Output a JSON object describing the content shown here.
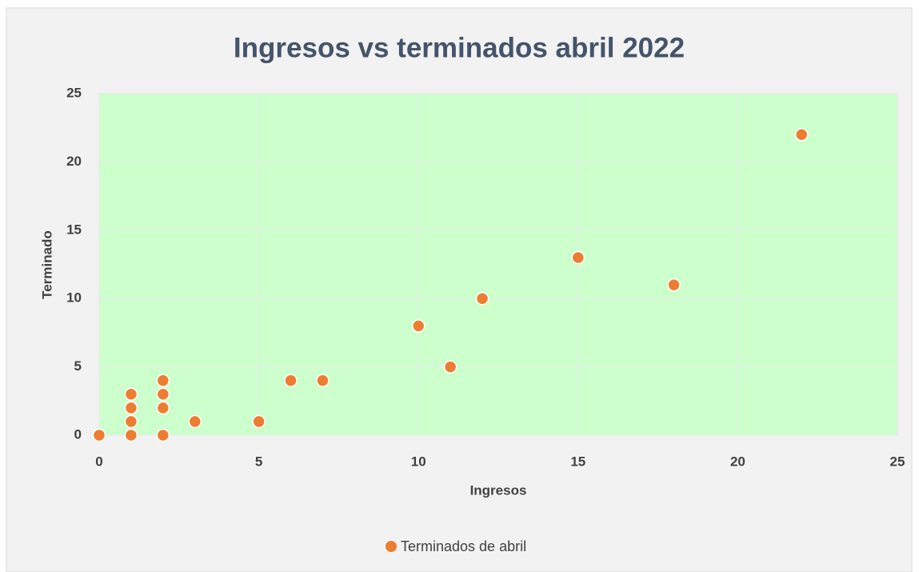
{
  "chart_data": {
    "type": "scatter",
    "title": "Ingresos vs terminados abril 2022",
    "x_label": "Ingresos",
    "y_label": "Terminado",
    "x": [
      0,
      1,
      1,
      1,
      1,
      2,
      2,
      2,
      2,
      3,
      5,
      6,
      7,
      10,
      11,
      12,
      15,
      18,
      22
    ],
    "series": [
      {
        "name": "Terminados de abril",
        "color": "#ed7d31",
        "values": [
          0,
          3,
          2,
          1,
          0,
          4,
          3,
          2,
          0,
          1,
          1,
          4,
          4,
          8,
          5,
          10,
          13,
          11,
          22
        ]
      }
    ],
    "xlim": [
      0,
      25
    ],
    "xticks": [
      0,
      5,
      10,
      15,
      20,
      25
    ],
    "ylim": [
      0,
      25
    ],
    "yticks": [
      0,
      5,
      10,
      15,
      20,
      25
    ],
    "grid": true,
    "plot_background": "#ccffcc",
    "legend": "bottom"
  }
}
